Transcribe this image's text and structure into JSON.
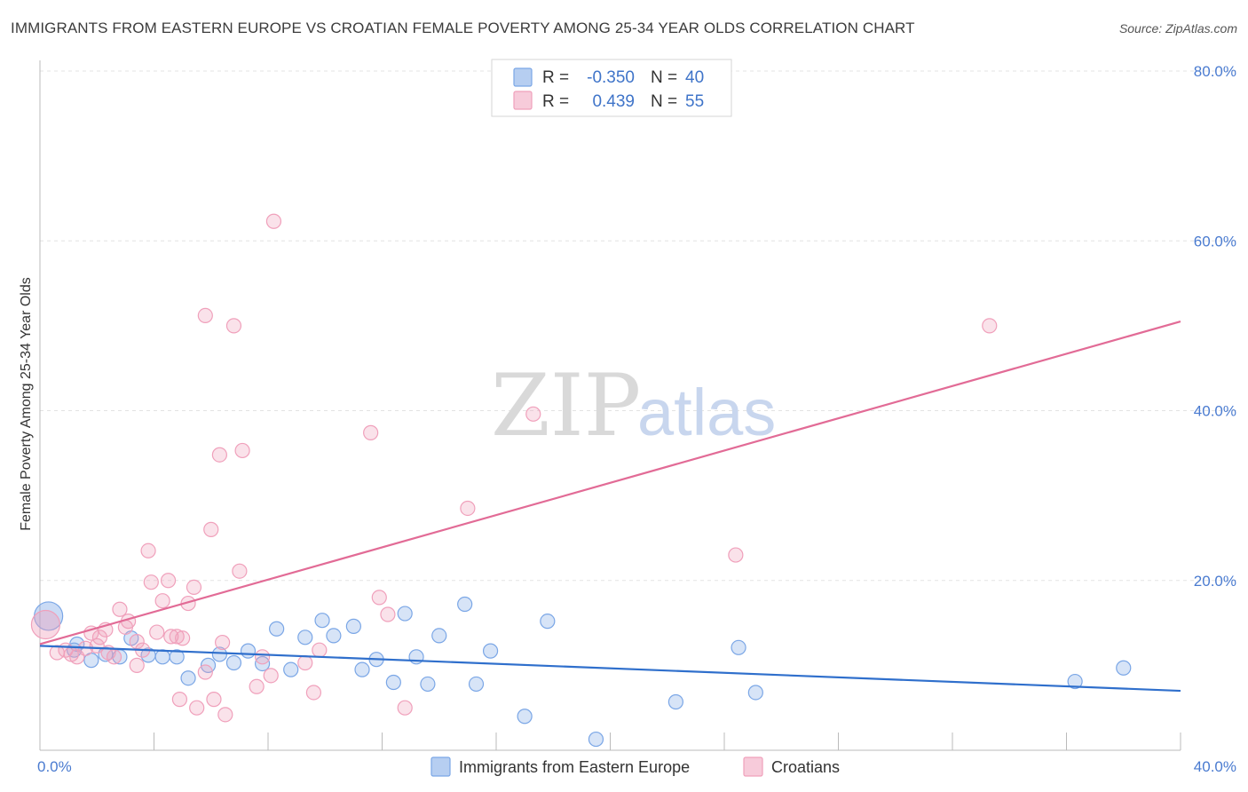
{
  "header": {
    "title": "IMMIGRANTS FROM EASTERN EUROPE VS CROATIAN FEMALE POVERTY AMONG 25-34 YEAR OLDS CORRELATION CHART",
    "source": "Source: ZipAtlas.com"
  },
  "watermark": {
    "zip": "ZIP",
    "atlas": "atlas"
  },
  "legend": {
    "r_label": "R =",
    "n_label": "N =",
    "rows": [
      {
        "r": "-0.350",
        "n": "40",
        "color": "#7aa6e6"
      },
      {
        "r": "0.439",
        "n": "55",
        "color": "#f0a0bb"
      }
    ]
  },
  "chart_data": {
    "type": "scatter",
    "title": "IMMIGRANTS FROM EASTERN EUROPE VS CROATIAN FEMALE POVERTY AMONG 25-34 YEAR OLDS CORRELATION CHART",
    "xlabel": "",
    "ylabel": "Female Poverty Among 25-34 Year Olds",
    "xlim": [
      0,
      40
    ],
    "ylim": [
      0,
      80
    ],
    "x_tick_labels": [
      "0.0%",
      "40.0%"
    ],
    "y_ticks": [
      20,
      40,
      60,
      80
    ],
    "y_tick_labels": [
      "20.0%",
      "40.0%",
      "60.0%",
      "80.0%"
    ],
    "grid": true,
    "legend_position": "bottom-center",
    "series": [
      {
        "name": "Immigrants from Eastern Europe",
        "color": "#7aa6e6",
        "line_color": "#2f6fcc",
        "trend": {
          "x": [
            0,
            40
          ],
          "y": [
            12.3,
            7.0
          ]
        },
        "points": [
          [
            0.3,
            15.8,
            "large"
          ],
          [
            1.2,
            11.8
          ],
          [
            1.3,
            12.5
          ],
          [
            1.8,
            10.6
          ],
          [
            2.3,
            11.3
          ],
          [
            2.8,
            11.0
          ],
          [
            3.2,
            13.2
          ],
          [
            3.8,
            11.2
          ],
          [
            4.3,
            11.0
          ],
          [
            4.8,
            11.0
          ],
          [
            5.2,
            8.5
          ],
          [
            5.9,
            10.0
          ],
          [
            6.3,
            11.3
          ],
          [
            6.8,
            10.3
          ],
          [
            7.3,
            11.7
          ],
          [
            7.8,
            10.2
          ],
          [
            8.3,
            14.3
          ],
          [
            8.8,
            9.5
          ],
          [
            9.3,
            13.3
          ],
          [
            9.9,
            15.3
          ],
          [
            10.3,
            13.5
          ],
          [
            11.0,
            14.6
          ],
          [
            11.3,
            9.5
          ],
          [
            11.8,
            10.7
          ],
          [
            12.4,
            8.0
          ],
          [
            12.8,
            16.1
          ],
          [
            13.2,
            11.0
          ],
          [
            13.6,
            7.8
          ],
          [
            14.0,
            13.5
          ],
          [
            14.9,
            17.2
          ],
          [
            15.3,
            7.8
          ],
          [
            15.8,
            11.7
          ],
          [
            17.0,
            4.0
          ],
          [
            17.8,
            15.2
          ],
          [
            19.5,
            1.3
          ],
          [
            22.3,
            5.7
          ],
          [
            24.5,
            12.1
          ],
          [
            25.1,
            6.8
          ],
          [
            36.3,
            8.1
          ],
          [
            38.0,
            9.7
          ]
        ]
      },
      {
        "name": "Croatians",
        "color": "#f0a0bb",
        "line_color": "#e26b96",
        "trend": {
          "x": [
            0,
            40
          ],
          "y": [
            12.5,
            50.5
          ]
        },
        "points": [
          [
            0.2,
            14.8,
            "large"
          ],
          [
            0.6,
            11.5
          ],
          [
            0.9,
            11.8
          ],
          [
            1.1,
            11.3
          ],
          [
            1.3,
            11.0
          ],
          [
            1.6,
            12.0
          ],
          [
            1.8,
            13.8
          ],
          [
            2.1,
            13.3
          ],
          [
            2.3,
            14.2
          ],
          [
            2.4,
            11.5
          ],
          [
            2.6,
            11.0
          ],
          [
            2.8,
            16.6
          ],
          [
            3.0,
            14.5
          ],
          [
            3.1,
            15.2
          ],
          [
            3.4,
            10.0
          ],
          [
            3.6,
            11.8
          ],
          [
            3.8,
            23.5
          ],
          [
            3.9,
            19.8
          ],
          [
            4.1,
            13.9
          ],
          [
            4.3,
            17.6
          ],
          [
            4.5,
            20.0
          ],
          [
            4.6,
            13.4
          ],
          [
            4.8,
            13.4
          ],
          [
            4.9,
            6.0
          ],
          [
            5.0,
            13.2
          ],
          [
            5.2,
            17.3
          ],
          [
            5.4,
            19.2
          ],
          [
            5.5,
            5.0
          ],
          [
            5.8,
            51.2
          ],
          [
            6.0,
            26.0
          ],
          [
            6.1,
            6.0
          ],
          [
            6.3,
            34.8
          ],
          [
            6.4,
            12.7
          ],
          [
            6.5,
            4.2
          ],
          [
            6.8,
            50.0
          ],
          [
            7.0,
            21.1
          ],
          [
            7.1,
            35.3
          ],
          [
            7.6,
            7.5
          ],
          [
            7.8,
            11.0
          ],
          [
            8.1,
            8.8
          ],
          [
            8.2,
            62.3
          ],
          [
            9.6,
            6.8
          ],
          [
            9.8,
            11.8
          ],
          [
            11.6,
            37.4
          ],
          [
            11.9,
            18.0
          ],
          [
            12.2,
            16.0
          ],
          [
            12.8,
            5.0
          ],
          [
            15.0,
            28.5
          ],
          [
            17.3,
            39.6
          ],
          [
            24.4,
            23.0
          ],
          [
            33.3,
            50.0
          ],
          [
            2.0,
            12.3
          ],
          [
            3.4,
            12.8
          ],
          [
            5.8,
            9.2
          ],
          [
            9.3,
            10.3
          ]
        ]
      }
    ]
  }
}
